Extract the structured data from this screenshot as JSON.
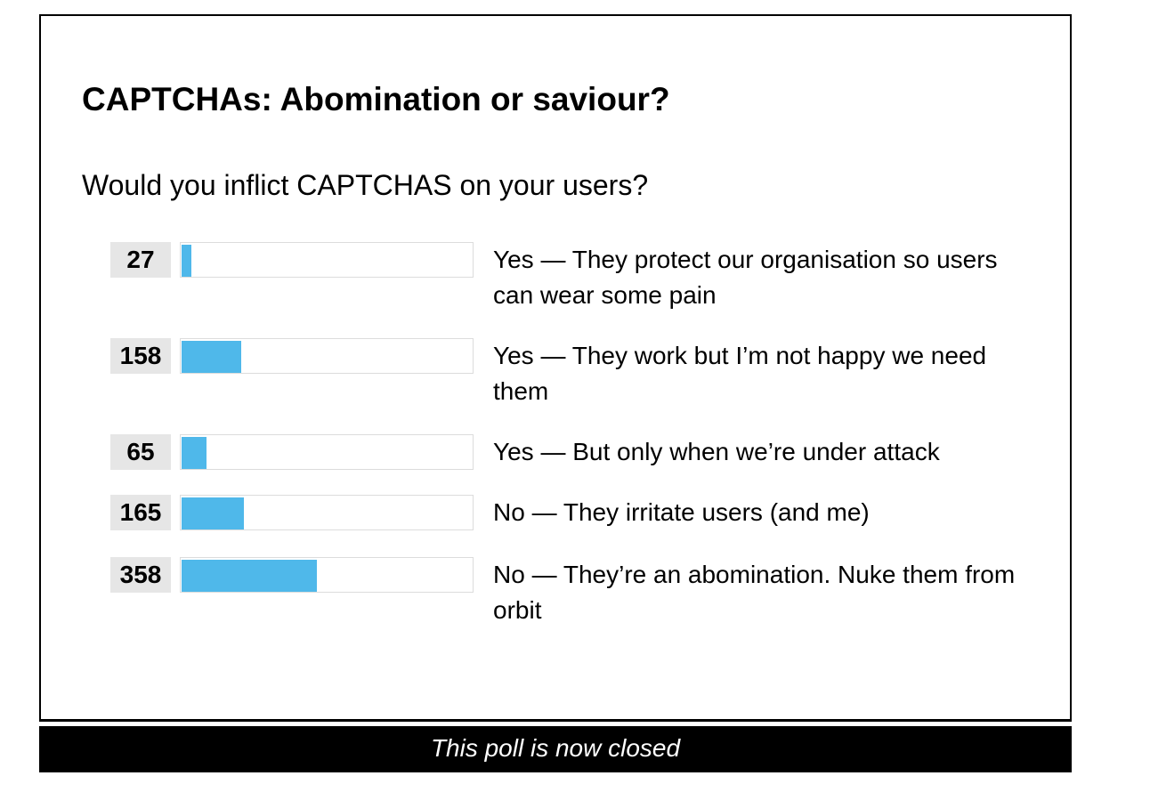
{
  "poll": {
    "title": "CAPTCHAs: Abomination or saviour?",
    "question": "Would you inflict CAPTCHAS on your users?",
    "bar_color": "#4fb8ea",
    "count_bg_color": "#e6e6e6",
    "options": [
      {
        "votes": "27",
        "label": "Yes — They protect our organisation so users can wear some pain"
      },
      {
        "votes": "158",
        "label": "Yes — They work but I’m not happy we need them"
      },
      {
        "votes": "65",
        "label": "Yes — But only when we’re under attack"
      },
      {
        "votes": "165",
        "label": "No — They irritate users (and me)"
      },
      {
        "votes": "358",
        "label": "No — They’re an abomination. Nuke them from orbit"
      }
    ],
    "status": "This poll is now closed"
  },
  "chart_data": {
    "type": "bar",
    "orientation": "horizontal",
    "title": "CAPTCHAs: Abomination or saviour?",
    "subtitle": "Would you inflict CAPTCHAS on your users?",
    "categories": [
      "Yes — They protect our organisation so users can wear some pain",
      "Yes — They work but I’m not happy we need them",
      "Yes — But only when we’re under attack",
      "No — They irritate users (and me)",
      "No — They’re an abomination. Nuke them from orbit"
    ],
    "values": [
      27,
      158,
      65,
      165,
      358
    ],
    "grid": false
  }
}
